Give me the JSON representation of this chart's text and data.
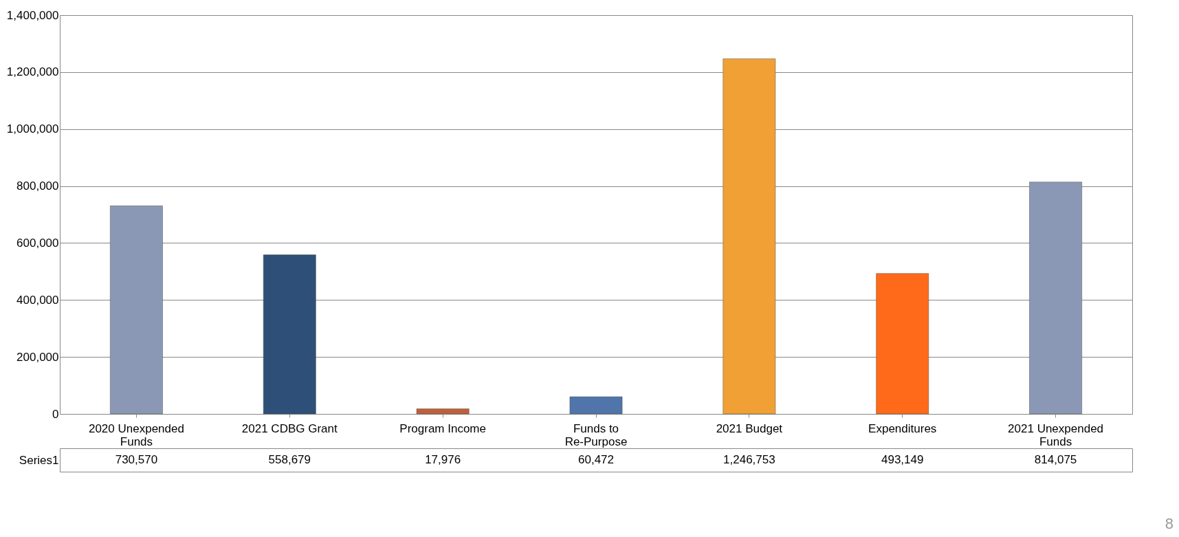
{
  "chart_data": {
    "type": "bar",
    "categories": [
      "2020 Unexpended Funds",
      "2021 CDBG Grant",
      "Program Income",
      "Funds to Re-Purpose",
      "2021 Budget",
      "Expenditures",
      "2021 Unexpended Funds"
    ],
    "series": [
      {
        "name": "Series1",
        "values": [
          730570,
          558679,
          17976,
          60472,
          1246753,
          493149,
          814075
        ],
        "colors": [
          "#8a98b5",
          "#2e4f77",
          "#c0603a",
          "#4f75aa",
          "#f0a035",
          "#ff6a1a",
          "#8a98b5"
        ]
      }
    ],
    "ylim": [
      0,
      1400000
    ],
    "yticks": [
      0,
      {
        "value": 200000,
        "label": "200,000"
      },
      {
        "value": 400000,
        "label": "400,000"
      },
      {
        "value": 600000,
        "label": "600,000"
      },
      {
        "value": 800000,
        "label": "800,000"
      },
      {
        "value": 1000000,
        "label": "1,000,000"
      },
      {
        "value": 1200000,
        "label": "1,200,000"
      },
      {
        "value": 1400000,
        "label": "1,400,000"
      }
    ],
    "value_labels": [
      "730,570",
      "558,679",
      "17,976",
      "60,472",
      "1,246,753",
      "493,149",
      "814,075"
    ],
    "grid": "y",
    "annotations": [
      "8"
    ]
  }
}
